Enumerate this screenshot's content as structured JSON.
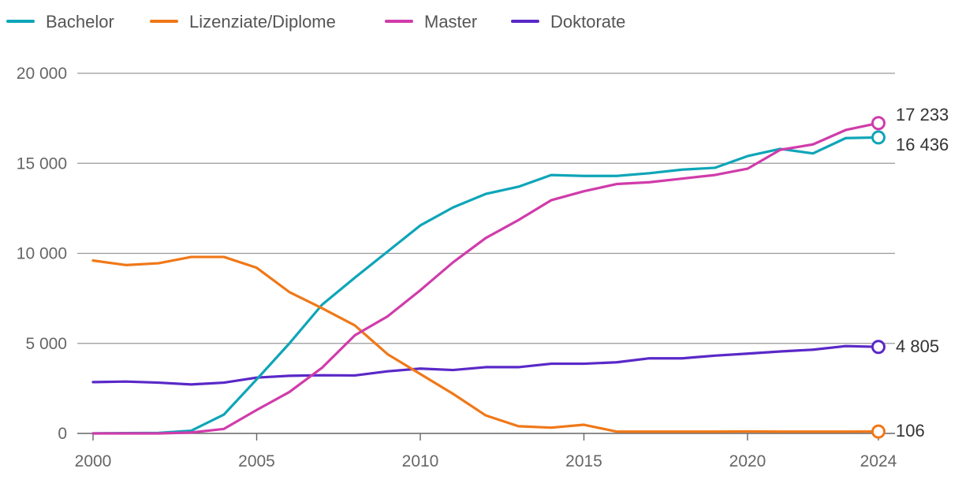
{
  "chart_data": {
    "type": "line",
    "title": "",
    "xlabel": "",
    "ylabel": "",
    "ylim": [
      0,
      20000
    ],
    "xlim": [
      2000,
      2024
    ],
    "grid": true,
    "legend_position": "top-left",
    "y_ticks": [
      {
        "value": 0,
        "label": "0"
      },
      {
        "value": 5000,
        "label": "5 000"
      },
      {
        "value": 10000,
        "label": "10 000"
      },
      {
        "value": 15000,
        "label": "15 000"
      },
      {
        "value": 20000,
        "label": "20 000"
      }
    ],
    "x_ticks": [
      {
        "value": 2000,
        "label": "2000"
      },
      {
        "value": 2005,
        "label": "2005"
      },
      {
        "value": 2010,
        "label": "2010"
      },
      {
        "value": 2015,
        "label": "2015"
      },
      {
        "value": 2020,
        "label": "2020"
      },
      {
        "value": 2024,
        "label": "2024"
      }
    ],
    "x": [
      2000,
      2001,
      2002,
      2003,
      2004,
      2005,
      2006,
      2007,
      2008,
      2009,
      2010,
      2011,
      2012,
      2013,
      2014,
      2015,
      2016,
      2017,
      2018,
      2019,
      2020,
      2021,
      2022,
      2023,
      2024
    ],
    "series": [
      {
        "name": "Bachelor",
        "color": "#0ea5b8",
        "values": [
          0,
          20,
          30,
          150,
          1050,
          3000,
          5000,
          7150,
          8650,
          10100,
          11550,
          12550,
          13300,
          13700,
          14350,
          14300,
          14300,
          14450,
          14650,
          14750,
          15400,
          15800,
          15550,
          16400,
          16436
        ],
        "end_label": "16 436"
      },
      {
        "name": "Lizenziate/Diplome",
        "color": "#f07818",
        "values": [
          9600,
          9350,
          9450,
          9800,
          9800,
          9200,
          7850,
          6950,
          6000,
          4400,
          3300,
          2200,
          1000,
          400,
          320,
          480,
          100,
          100,
          100,
          100,
          110,
          100,
          100,
          100,
          106
        ],
        "end_label": "106"
      },
      {
        "name": "Master",
        "color": "#d03caa",
        "values": [
          0,
          0,
          0,
          50,
          250,
          1300,
          2300,
          3650,
          5450,
          6500,
          7950,
          9500,
          10850,
          11850,
          12950,
          13450,
          13850,
          13950,
          14150,
          14350,
          14700,
          15750,
          16050,
          16850,
          17233
        ],
        "end_label": "17 233"
      },
      {
        "name": "Doktorate",
        "color": "#5a28c8",
        "values": [
          2850,
          2880,
          2820,
          2720,
          2820,
          3100,
          3200,
          3230,
          3220,
          3450,
          3600,
          3520,
          3680,
          3680,
          3870,
          3870,
          3950,
          4170,
          4170,
          4320,
          4430,
          4550,
          4650,
          4850,
          4805
        ],
        "end_label": "4 805"
      }
    ]
  }
}
